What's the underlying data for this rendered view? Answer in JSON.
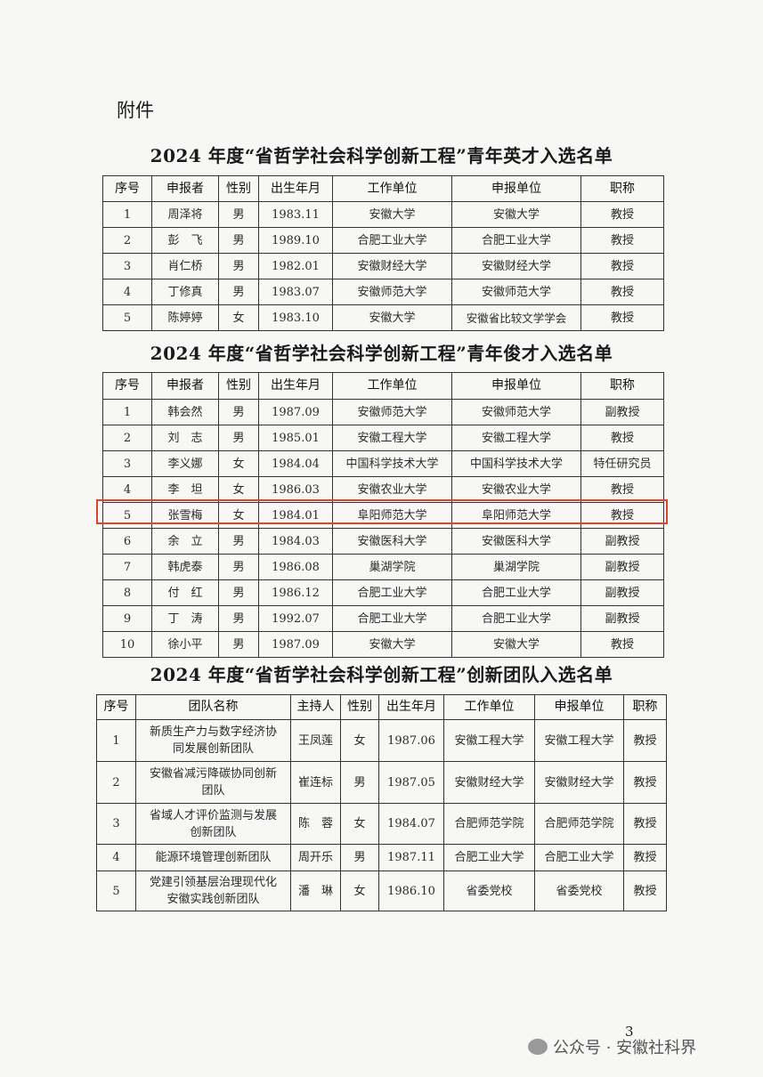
{
  "attachment_label": "附件",
  "tables": [
    {
      "title": "2024 年度“省哲学社会科学创新工程”青年英才入选名单",
      "headers": [
        "序号",
        "申报者",
        "性别",
        "出生年月",
        "工作单位",
        "申报单位",
        "职称"
      ],
      "rows": [
        [
          "1",
          "周泽将",
          "男",
          "1983.11",
          "安徽大学",
          "安徽大学",
          "教授"
        ],
        [
          "2",
          "彭　飞",
          "男",
          "1989.10",
          "合肥工业大学",
          "合肥工业大学",
          "教授"
        ],
        [
          "3",
          "肖仁桥",
          "男",
          "1982.01",
          "安徽财经大学",
          "安徽财经大学",
          "教授"
        ],
        [
          "4",
          "丁修真",
          "男",
          "1983.07",
          "安徽师范大学",
          "安徽师范大学",
          "教授"
        ],
        [
          "5",
          "陈婷婷",
          "女",
          "1983.10",
          "安徽大学",
          "安徽省比较文学学会",
          "教授"
        ]
      ]
    },
    {
      "title": "2024 年度“省哲学社会科学创新工程”青年俊才入选名单",
      "headers": [
        "序号",
        "申报者",
        "性别",
        "出生年月",
        "工作单位",
        "申报单位",
        "职称"
      ],
      "rows": [
        [
          "1",
          "韩会然",
          "男",
          "1987.09",
          "安徽师范大学",
          "安徽师范大学",
          "副教授"
        ],
        [
          "2",
          "刘　志",
          "男",
          "1985.01",
          "安徽工程大学",
          "安徽工程大学",
          "教授"
        ],
        [
          "3",
          "李义娜",
          "女",
          "1984.04",
          "中国科学技术大学",
          "中国科学技术大学",
          "特任研究员"
        ],
        [
          "4",
          "李　坦",
          "女",
          "1986.03",
          "安徽农业大学",
          "安徽农业大学",
          "教授"
        ],
        [
          "5",
          "张雪梅",
          "女",
          "1984.01",
          "阜阳师范大学",
          "阜阳师范大学",
          "教授"
        ],
        [
          "6",
          "余　立",
          "男",
          "1984.03",
          "安徽医科大学",
          "安徽医科大学",
          "副教授"
        ],
        [
          "7",
          "韩虎泰",
          "男",
          "1986.08",
          "巢湖学院",
          "巢湖学院",
          "副教授"
        ],
        [
          "8",
          "付　红",
          "男",
          "1986.12",
          "合肥工业大学",
          "合肥工业大学",
          "副教授"
        ],
        [
          "9",
          "丁　涛",
          "男",
          "1992.07",
          "合肥工业大学",
          "合肥工业大学",
          "副教授"
        ],
        [
          "10",
          "徐小平",
          "男",
          "1987.09",
          "安徽大学",
          "安徽大学",
          "教授"
        ]
      ],
      "highlighted_row": 5,
      "highlight_color": "#e8402a"
    },
    {
      "title": "2024 年度“省哲学社会科学创新工程”创新团队入选名单",
      "headers": [
        "序号",
        "团队名称",
        "主持人",
        "性别",
        "出生年月",
        "工作单位",
        "申报单位",
        "职称"
      ],
      "rows": [
        [
          "1",
          "新质生产力与数字经济协同发展创新团队",
          "王凤莲",
          "女",
          "1987.06",
          "安徽工程大学",
          "安徽工程大学",
          "教授"
        ],
        [
          "2",
          "安徽省减污降碳协同创新团队",
          "崔连标",
          "男",
          "1987.05",
          "安徽财经大学",
          "安徽财经大学",
          "教授"
        ],
        [
          "3",
          "省域人才评价监测与发展创新团队",
          "陈　蓉",
          "女",
          "1984.07",
          "合肥师范学院",
          "合肥师范学院",
          "教授"
        ],
        [
          "4",
          "能源环境管理创新团队",
          "周开乐",
          "男",
          "1987.11",
          "合肥工业大学",
          "合肥工业大学",
          "教授"
        ],
        [
          "5",
          "党建引领基层治理现代化安徽实践创新团队",
          "潘　琳",
          "女",
          "1986.10",
          "省委党校",
          "省委党校",
          "教授"
        ]
      ]
    }
  ],
  "page_number": "3",
  "watermark": "公众号 · 安徽社科界"
}
